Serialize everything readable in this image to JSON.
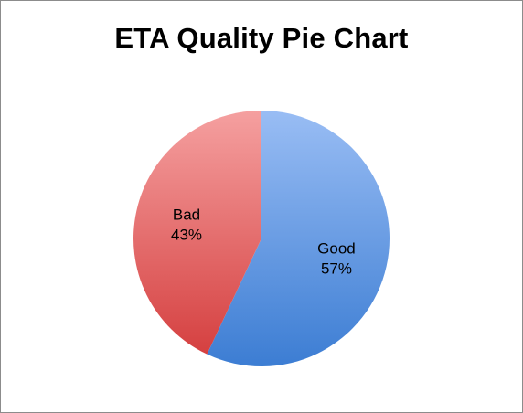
{
  "chart_data": {
    "type": "pie",
    "title": "ETA Quality Pie Chart",
    "slices": [
      {
        "label": "Good",
        "value": 57,
        "value_label": "57%",
        "color_top": "#99bdf4",
        "color_bottom": "#3c7dd3"
      },
      {
        "label": "Bad",
        "value": 43,
        "value_label": "43%",
        "color_top": "#f5a0a0",
        "color_bottom": "#d54040"
      }
    ],
    "start_angle_deg": 0,
    "direction": "clockwise",
    "legend": "none"
  }
}
